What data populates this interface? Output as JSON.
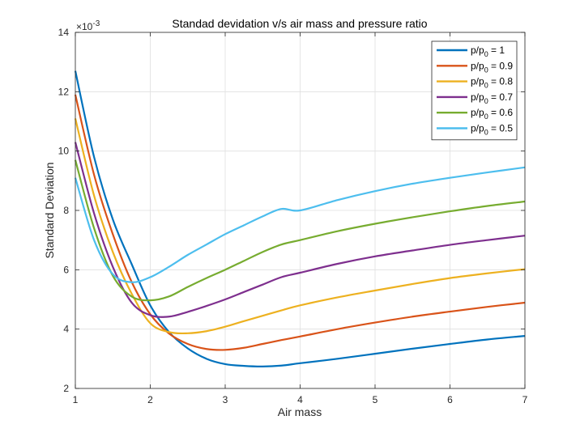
{
  "chart_data": {
    "type": "line",
    "title": "Standad devidation v/s air mass and pressure ratio",
    "xlabel": "Air mass",
    "ylabel": "Standard Deviation",
    "exponent_label": "×10",
    "exponent_value": "-3",
    "xlim": [
      1,
      7
    ],
    "ylim": [
      2,
      14
    ],
    "xticks": [
      "1",
      "2",
      "3",
      "4",
      "5",
      "6",
      "7"
    ],
    "yticks": [
      "2",
      "4",
      "6",
      "8",
      "10",
      "12",
      "14"
    ],
    "grid": true,
    "legend_position": "top-right",
    "x": [
      1.0,
      1.25,
      1.5,
      1.75,
      2.0,
      2.25,
      2.5,
      2.75,
      3.0,
      3.25,
      3.5,
      3.75,
      4.0,
      4.5,
      5.0,
      5.5,
      6.0,
      6.5,
      7.0
    ],
    "series": [
      {
        "legend_base": "p/p",
        "legend_sub": "0",
        "legend_value": " = 1",
        "color": "#0072BD",
        "values": [
          12.7,
          9.8,
          7.7,
          6.2,
          4.8,
          3.9,
          3.35,
          3.0,
          2.82,
          2.76,
          2.74,
          2.77,
          2.85,
          3.0,
          3.17,
          3.34,
          3.5,
          3.65,
          3.77
        ]
      },
      {
        "legend_base": "p/p",
        "legend_sub": "0",
        "legend_value": " = 0.9",
        "color": "#D95319",
        "values": [
          11.9,
          9.2,
          7.2,
          5.6,
          4.5,
          3.85,
          3.5,
          3.33,
          3.3,
          3.37,
          3.5,
          3.63,
          3.75,
          4.0,
          4.22,
          4.42,
          4.59,
          4.75,
          4.89
        ]
      },
      {
        "legend_base": "p/p",
        "legend_sub": "0",
        "legend_value": " = 0.8",
        "color": "#EDB120",
        "values": [
          11.1,
          8.5,
          6.6,
          5.2,
          4.2,
          3.9,
          3.86,
          3.93,
          4.08,
          4.27,
          4.45,
          4.63,
          4.8,
          5.07,
          5.3,
          5.52,
          5.72,
          5.88,
          6.02
        ]
      },
      {
        "legend_base": "p/p",
        "legend_sub": "0",
        "legend_value": " = 0.7",
        "color": "#7E2F8E",
        "values": [
          10.3,
          7.9,
          6.1,
          4.9,
          4.47,
          4.42,
          4.58,
          4.78,
          5.0,
          5.25,
          5.5,
          5.75,
          5.9,
          6.2,
          6.45,
          6.65,
          6.84,
          7.0,
          7.15
        ]
      },
      {
        "legend_base": "p/p",
        "legend_sub": "0",
        "legend_value": " = 0.6",
        "color": "#77AC30",
        "values": [
          9.7,
          7.4,
          5.8,
          5.1,
          4.97,
          5.1,
          5.42,
          5.72,
          6.0,
          6.3,
          6.6,
          6.85,
          7.0,
          7.3,
          7.55,
          7.77,
          7.97,
          8.15,
          8.3
        ]
      },
      {
        "legend_base": "p/p",
        "legend_sub": "0",
        "legend_value": " = 0.5",
        "color": "#4DBEEE",
        "values": [
          9.1,
          7.0,
          5.85,
          5.58,
          5.75,
          6.1,
          6.5,
          6.85,
          7.2,
          7.5,
          7.8,
          8.05,
          8.0,
          8.35,
          8.65,
          8.9,
          9.1,
          9.28,
          9.45
        ]
      }
    ]
  }
}
